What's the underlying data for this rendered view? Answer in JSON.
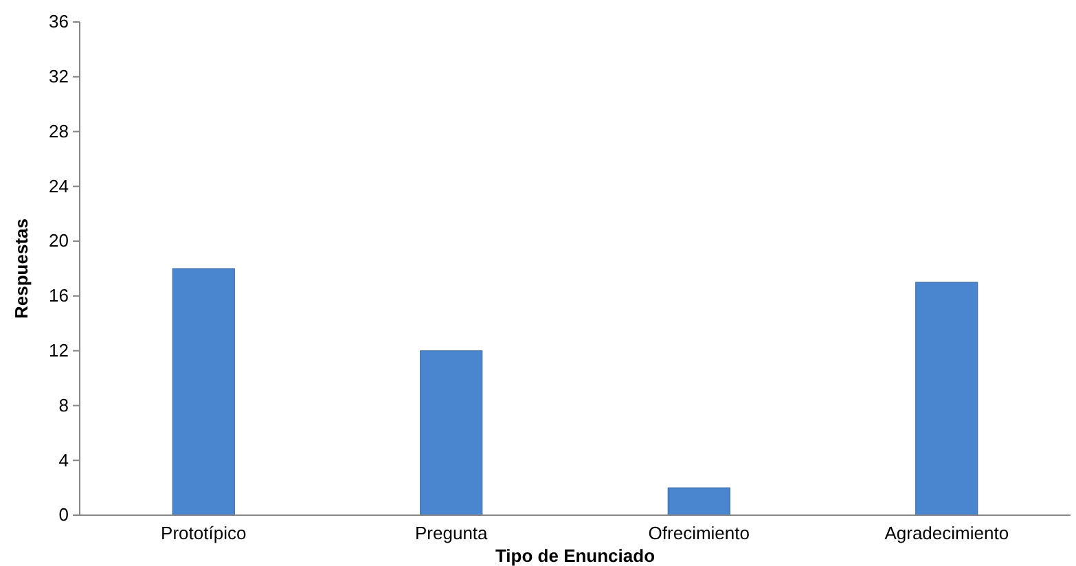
{
  "chart_data": {
    "type": "bar",
    "xlabel": "Tipo de Enunciado",
    "ylabel": "Respuestas",
    "categories": [
      "Prototípico",
      "Pregunta",
      "Ofrecimiento",
      "Agradecimiento"
    ],
    "values": [
      18,
      12,
      2,
      17
    ],
    "color": "#4a86d0",
    "ylim": [
      0,
      36
    ],
    "yticks": [
      0,
      4,
      8,
      12,
      16,
      20,
      24,
      28,
      32,
      36
    ],
    "grid": false
  }
}
